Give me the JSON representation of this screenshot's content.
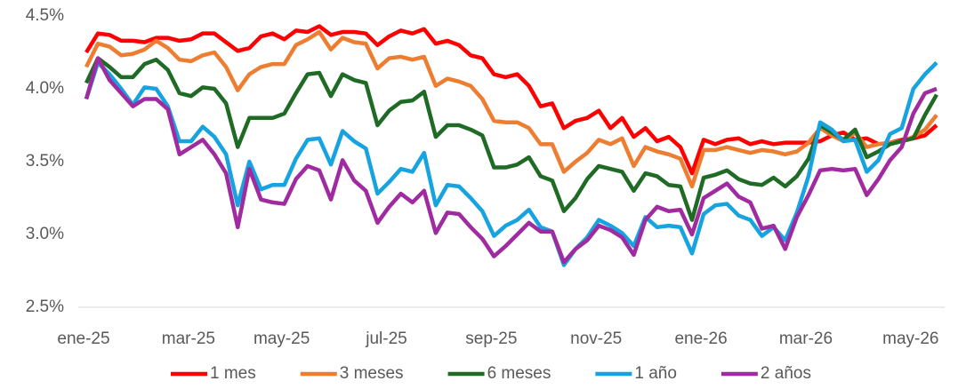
{
  "chart_data": {
    "type": "line",
    "categories": [
      "ene-25",
      null,
      null,
      null,
      null,
      null,
      null,
      null,
      null,
      "mar-25",
      null,
      null,
      null,
      null,
      null,
      null,
      null,
      "may-25",
      null,
      null,
      null,
      null,
      null,
      null,
      null,
      null,
      "jul-25",
      null,
      null,
      null,
      null,
      null,
      null,
      null,
      null,
      "sep-25",
      null,
      null,
      null,
      null,
      null,
      null,
      null,
      null,
      "nov-25",
      null,
      null,
      null,
      null,
      null,
      null,
      null,
      null,
      "ene-26",
      null,
      null,
      null,
      null,
      null,
      null,
      null,
      null,
      "mar-26",
      null,
      null,
      null,
      null,
      null,
      null,
      null,
      null,
      "may-26",
      null,
      null
    ],
    "series": [
      {
        "name": "1 mes",
        "color": "#ff0000",
        "values": [
          4.25,
          4.38,
          4.37,
          4.33,
          4.33,
          4.32,
          4.35,
          4.35,
          4.33,
          4.34,
          4.38,
          4.38,
          4.32,
          4.26,
          4.28,
          4.36,
          4.38,
          4.34,
          4.4,
          4.39,
          4.43,
          4.37,
          4.39,
          4.39,
          4.38,
          4.3,
          4.36,
          4.4,
          4.38,
          4.41,
          4.31,
          4.33,
          4.3,
          4.23,
          4.21,
          4.1,
          4.08,
          4.1,
          4.02,
          3.88,
          3.9,
          3.73,
          3.78,
          3.8,
          3.85,
          3.73,
          3.8,
          3.67,
          3.73,
          3.64,
          3.67,
          3.6,
          3.42,
          3.65,
          3.62,
          3.65,
          3.66,
          3.62,
          3.64,
          3.62,
          3.63,
          3.63,
          3.63,
          3.64,
          3.68,
          3.7,
          3.65,
          3.66,
          3.62,
          3.63,
          3.65,
          3.66,
          3.68,
          3.75
        ]
      },
      {
        "name": "3 meses",
        "color": "#ed7d31",
        "values": [
          4.15,
          4.31,
          4.29,
          4.23,
          4.24,
          4.27,
          4.33,
          4.28,
          4.2,
          4.19,
          4.23,
          4.25,
          4.15,
          3.99,
          4.1,
          4.15,
          4.17,
          4.17,
          4.3,
          4.34,
          4.39,
          4.27,
          4.35,
          4.32,
          4.31,
          4.14,
          4.21,
          4.22,
          4.2,
          4.22,
          4.02,
          4.07,
          4.05,
          4.02,
          3.93,
          3.78,
          3.77,
          3.77,
          3.73,
          3.62,
          3.62,
          3.43,
          3.5,
          3.56,
          3.65,
          3.62,
          3.66,
          3.47,
          3.6,
          3.57,
          3.55,
          3.52,
          3.33,
          3.58,
          3.58,
          3.6,
          3.58,
          3.56,
          3.58,
          3.57,
          3.55,
          3.57,
          3.63,
          3.73,
          3.68,
          3.64,
          3.7,
          3.6,
          3.62,
          3.63,
          3.64,
          3.67,
          3.72,
          3.82
        ]
      },
      {
        "name": "6 meses",
        "color": "#1f6b26",
        "values": [
          4.04,
          4.21,
          4.15,
          4.08,
          4.08,
          4.17,
          4.2,
          4.13,
          3.97,
          3.95,
          4.01,
          4.0,
          3.9,
          3.6,
          3.8,
          3.8,
          3.8,
          3.83,
          3.97,
          4.1,
          4.11,
          3.95,
          4.1,
          4.06,
          4.04,
          3.75,
          3.85,
          3.91,
          3.92,
          3.98,
          3.67,
          3.75,
          3.75,
          3.72,
          3.68,
          3.46,
          3.46,
          3.48,
          3.53,
          3.4,
          3.37,
          3.16,
          3.25,
          3.38,
          3.47,
          3.45,
          3.43,
          3.3,
          3.42,
          3.4,
          3.34,
          3.33,
          3.1,
          3.39,
          3.41,
          3.44,
          3.38,
          3.35,
          3.34,
          3.39,
          3.33,
          3.4,
          3.52,
          3.75,
          3.7,
          3.65,
          3.72,
          3.53,
          3.57,
          3.62,
          3.64,
          3.66,
          3.82,
          3.96
        ]
      },
      {
        "name": "1 año",
        "color": "#17a3df",
        "values": [
          3.93,
          4.18,
          4.1,
          4.0,
          3.89,
          4.01,
          4.0,
          3.88,
          3.64,
          3.64,
          3.74,
          3.67,
          3.55,
          3.2,
          3.5,
          3.31,
          3.34,
          3.34,
          3.52,
          3.65,
          3.66,
          3.48,
          3.71,
          3.64,
          3.59,
          3.28,
          3.36,
          3.45,
          3.43,
          3.56,
          3.2,
          3.34,
          3.33,
          3.25,
          3.16,
          2.99,
          3.06,
          3.1,
          3.17,
          3.05,
          3.02,
          2.79,
          2.9,
          2.98,
          3.1,
          3.06,
          3.01,
          2.92,
          3.12,
          3.05,
          3.06,
          3.05,
          2.87,
          3.14,
          3.2,
          3.21,
          3.13,
          3.1,
          2.99,
          3.05,
          2.96,
          3.15,
          3.4,
          3.77,
          3.72,
          3.64,
          3.65,
          3.43,
          3.51,
          3.69,
          3.73,
          4.0,
          4.1,
          4.18
        ]
      },
      {
        "name": "2 años",
        "color": "#a02ba0",
        "values": [
          3.93,
          4.21,
          4.06,
          3.97,
          3.88,
          3.93,
          3.93,
          3.86,
          3.55,
          3.6,
          3.65,
          3.55,
          3.42,
          3.05,
          3.45,
          3.24,
          3.22,
          3.21,
          3.38,
          3.47,
          3.44,
          3.24,
          3.51,
          3.37,
          3.3,
          3.08,
          3.19,
          3.28,
          3.22,
          3.3,
          3.01,
          3.15,
          3.14,
          3.05,
          2.97,
          2.85,
          2.92,
          3.0,
          3.08,
          3.02,
          3.02,
          2.81,
          2.9,
          2.96,
          3.06,
          3.03,
          2.98,
          2.86,
          3.1,
          3.19,
          3.16,
          3.17,
          3.0,
          3.25,
          3.3,
          3.35,
          3.26,
          3.22,
          3.04,
          3.06,
          2.9,
          3.12,
          3.27,
          3.44,
          3.45,
          3.44,
          3.45,
          3.27,
          3.38,
          3.51,
          3.6,
          3.83,
          3.97,
          4.0
        ]
      }
    ],
    "ylim": [
      2.5,
      4.5
    ],
    "yticks": [
      {
        "value": 2.5,
        "label": "2.5%"
      },
      {
        "value": 3.0,
        "label": "3.0%"
      },
      {
        "value": 3.5,
        "label": "3.5%"
      },
      {
        "value": 4.0,
        "label": "4.0%"
      },
      {
        "value": 4.5,
        "label": "4.5%"
      }
    ],
    "legend": "bottom"
  }
}
